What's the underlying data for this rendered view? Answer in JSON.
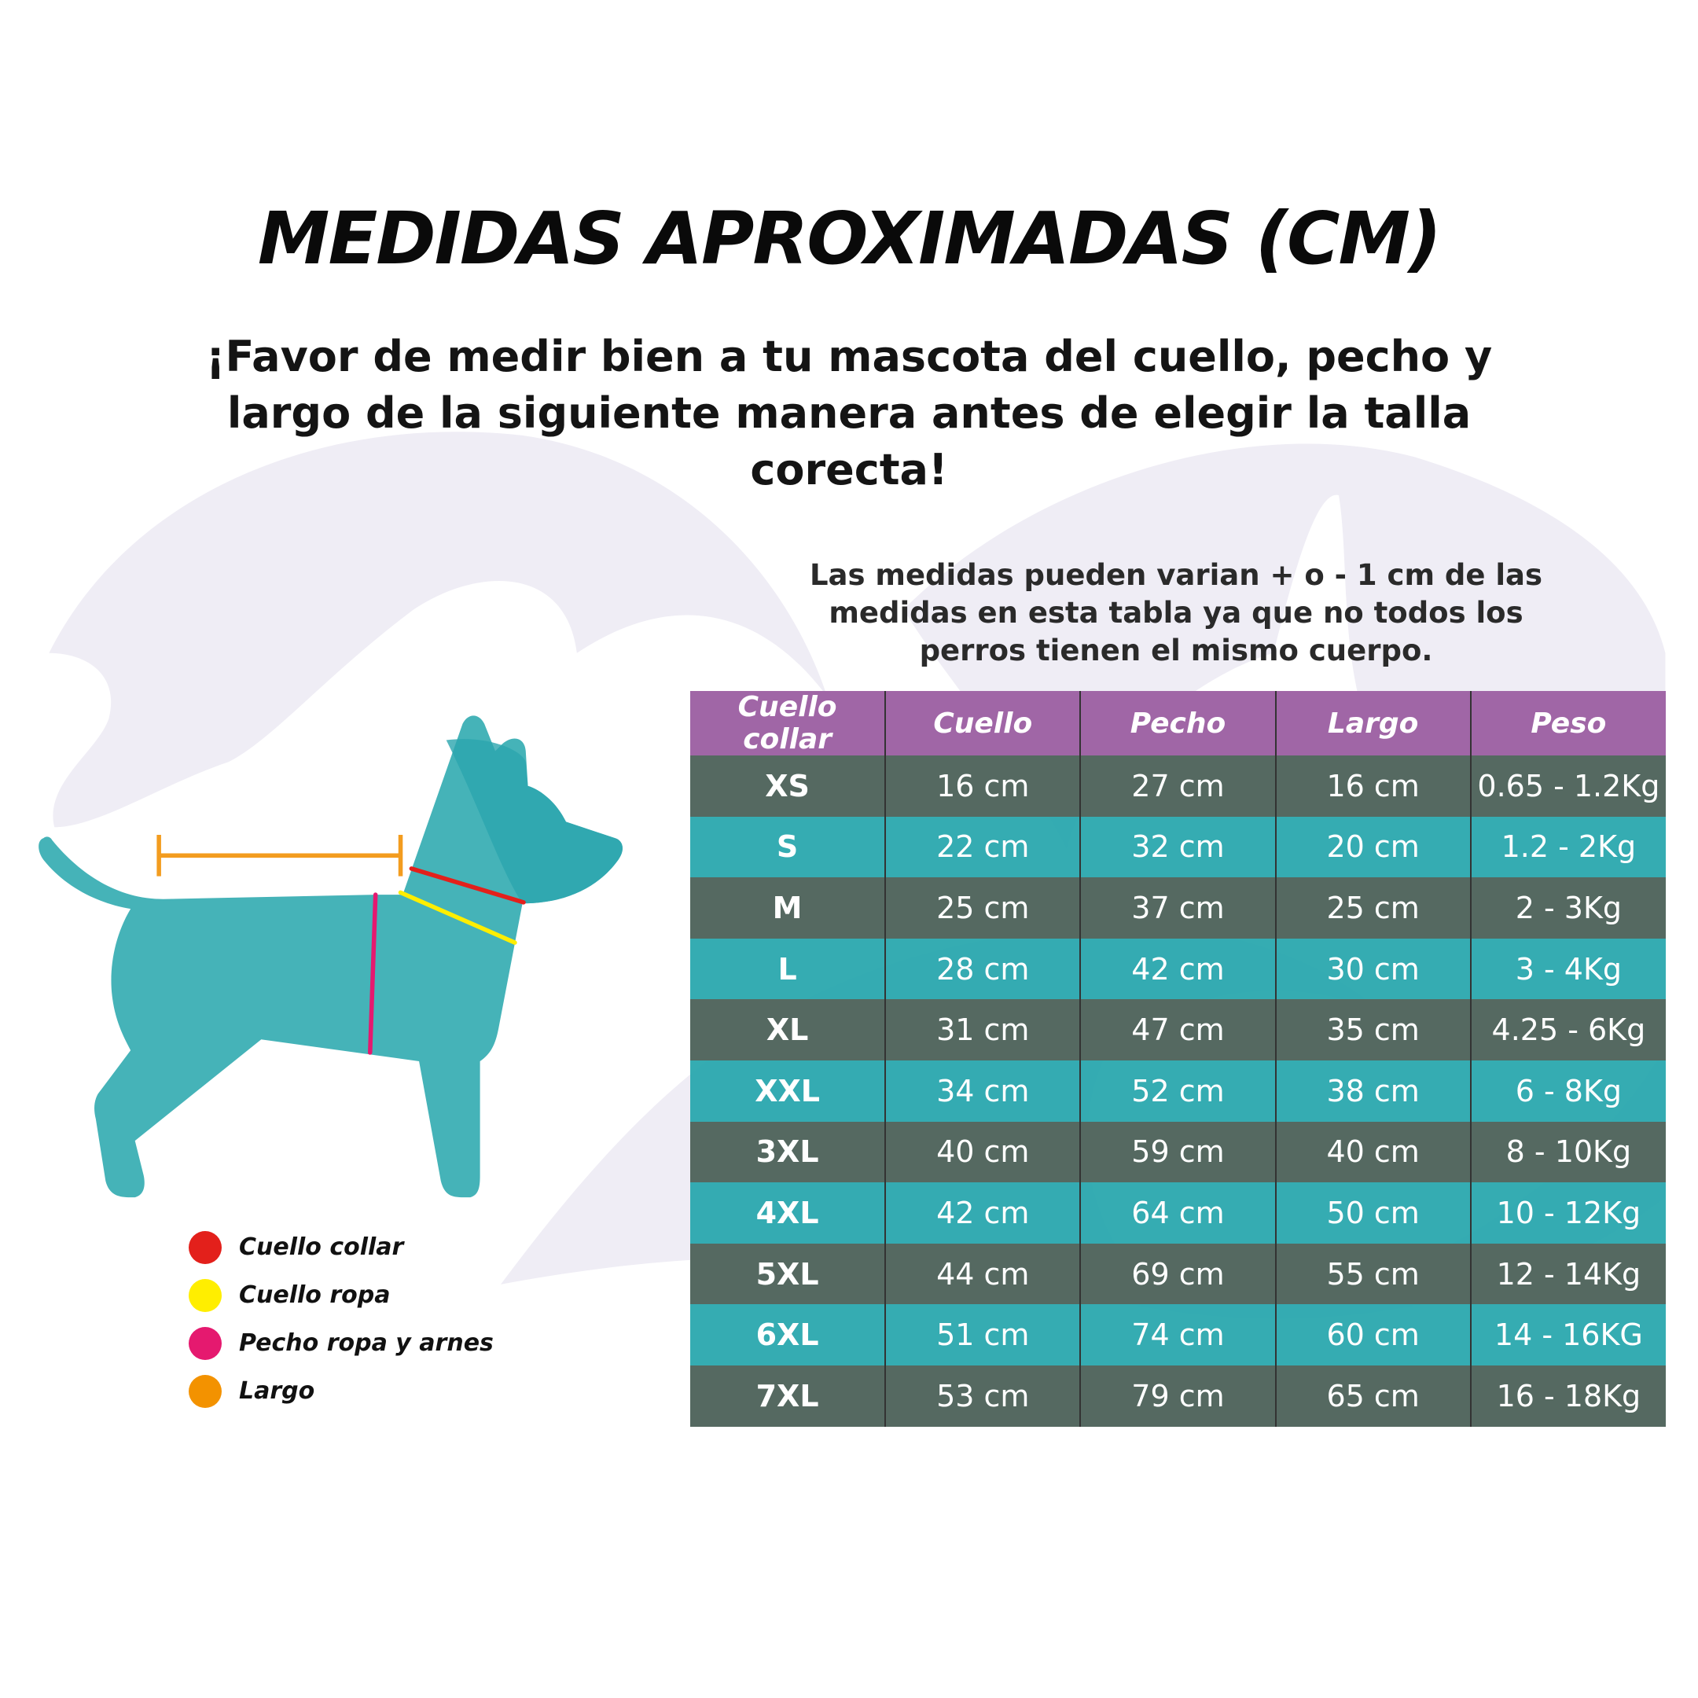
{
  "title": "MEDIDAS APROXIMADAS (CM)",
  "subtitle": "¡Favor de medir bien a tu mascota del cuello, pecho y largo de la siguiente manera antes de elegir la talla corecta!",
  "note": "Las medidas pueden varian + o - 1 cm de las medidas en esta tabla ya que no todos los perros tienen el mismo cuerpo.",
  "colors": {
    "header": "#a066a6",
    "row_dark": "#50645c",
    "row_teal": "#26a6ac",
    "dog": "#45b3b8",
    "background_shape": "#efedf5"
  },
  "table": {
    "headers": [
      "Cuello collar",
      "Cuello",
      "Pecho",
      "Largo",
      "Peso"
    ],
    "rows": [
      [
        "XS",
        "16 cm",
        "27 cm",
        "16 cm",
        "0.65 - 1.2Kg"
      ],
      [
        "S",
        "22 cm",
        "32 cm",
        "20 cm",
        "1.2 - 2Kg"
      ],
      [
        "M",
        "25 cm",
        "37 cm",
        "25 cm",
        "2 - 3Kg"
      ],
      [
        "L",
        "28 cm",
        "42 cm",
        "30 cm",
        "3 - 4Kg"
      ],
      [
        "XL",
        "31 cm",
        "47 cm",
        "35 cm",
        "4.25 - 6Kg"
      ],
      [
        "XXL",
        "34 cm",
        "52 cm",
        "38 cm",
        "6 - 8Kg"
      ],
      [
        "3XL",
        "40 cm",
        "59 cm",
        "40 cm",
        "8 - 10Kg"
      ],
      [
        "4XL",
        "42 cm",
        "64 cm",
        "50 cm",
        "10 - 12Kg"
      ],
      [
        "5XL",
        "44 cm",
        "69 cm",
        "55 cm",
        "12 - 14Kg"
      ],
      [
        "6XL",
        "51 cm",
        "74 cm",
        "60 cm",
        "14 - 16KG"
      ],
      [
        "7XL",
        "53 cm",
        "79 cm",
        "65 cm",
        "16 - 18Kg"
      ]
    ]
  },
  "legend": [
    {
      "label": "Cuello collar",
      "color": "#e3201b"
    },
    {
      "label": "Cuello ropa",
      "color": "#ffee00"
    },
    {
      "label": "Pecho ropa y arnes",
      "color": "#e5196f"
    },
    {
      "label": "Largo",
      "color": "#f39200"
    }
  ]
}
